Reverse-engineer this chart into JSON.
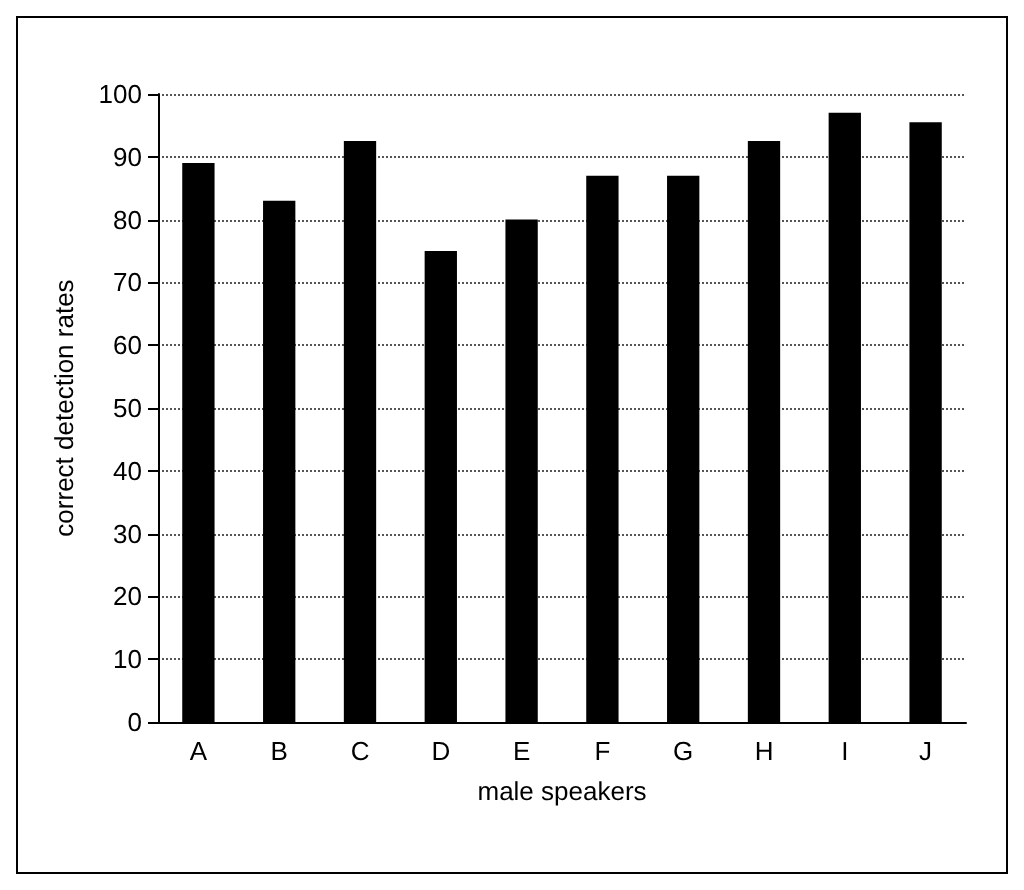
{
  "chart_data": {
    "type": "bar",
    "xlabel": "male speakers",
    "ylabel": "correct detection rates",
    "categories": [
      "A",
      "B",
      "C",
      "D",
      "E",
      "F",
      "G",
      "H",
      "I",
      "J"
    ],
    "values": [
      89,
      83,
      92.5,
      75,
      80,
      87,
      87,
      92.5,
      97,
      95.5
    ],
    "color": "#000000",
    "ylim": [
      0,
      100
    ],
    "yticks": [
      0,
      10,
      20,
      30,
      40,
      50,
      60,
      70,
      80,
      90,
      100
    ],
    "grid": "y"
  }
}
